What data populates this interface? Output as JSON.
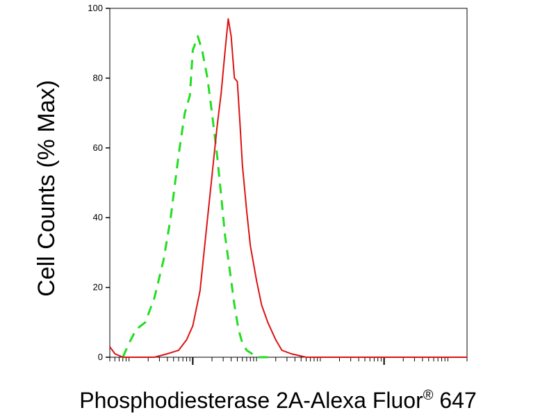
{
  "chart_data": {
    "type": "line",
    "title": "",
    "xlabel": "Phosphodiesterase 2A-Alexa Fluor",
    "xlabel_superscript": "®",
    "xlabel_suffix": " 647",
    "ylabel": "Cell Counts (% Max)",
    "x_scale": "log",
    "xlim": [
      0.05,
      20000
    ],
    "ylim": [
      0,
      100
    ],
    "y_ticks": [
      0,
      20,
      40,
      60,
      80,
      100
    ],
    "y_tick_labels": [
      "0",
      "20",
      "40",
      "60",
      "80",
      "100"
    ],
    "x_major_ticks": [
      1,
      1000
    ],
    "grid": false,
    "legend": "none",
    "series": [
      {
        "style": "dashed",
        "color": "#22dd22",
        "x": [
          0.08,
          0.1,
          0.13,
          0.18,
          0.25,
          0.35,
          0.45,
          0.6,
          0.75,
          0.9,
          1.0,
          1.2,
          1.4,
          1.7,
          2.0,
          2.4,
          2.8,
          3.2,
          3.8,
          4.5,
          5.2,
          6.0,
          7.0,
          8.5,
          10,
          12,
          15
        ],
        "y": [
          0,
          4,
          8,
          10,
          17,
          28,
          40,
          58,
          70,
          75,
          88,
          92,
          88,
          80,
          70,
          58,
          46,
          35,
          25,
          15,
          8,
          4,
          2,
          1,
          0,
          0,
          0
        ]
      },
      {
        "style": "solid",
        "color": "#dd1111",
        "x": [
          0.05,
          0.06,
          0.08,
          0.1,
          0.15,
          0.25,
          0.4,
          0.6,
          0.8,
          1.0,
          1.3,
          1.6,
          2.0,
          2.4,
          2.8,
          3.0,
          3.3,
          3.6,
          4.0,
          4.5,
          5.0,
          5.5,
          6.0,
          7.0,
          8.0,
          10,
          12,
          15,
          20,
          25,
          35,
          60,
          100,
          1000,
          10000,
          20000
        ],
        "y": [
          3,
          1,
          0,
          0,
          0,
          0,
          1,
          2,
          5,
          9,
          19,
          35,
          52,
          66,
          76,
          82,
          90,
          97,
          92,
          80,
          79,
          67,
          55,
          42,
          32,
          22,
          15,
          10,
          5,
          2,
          1,
          0,
          0,
          0,
          0,
          0
        ]
      }
    ]
  }
}
